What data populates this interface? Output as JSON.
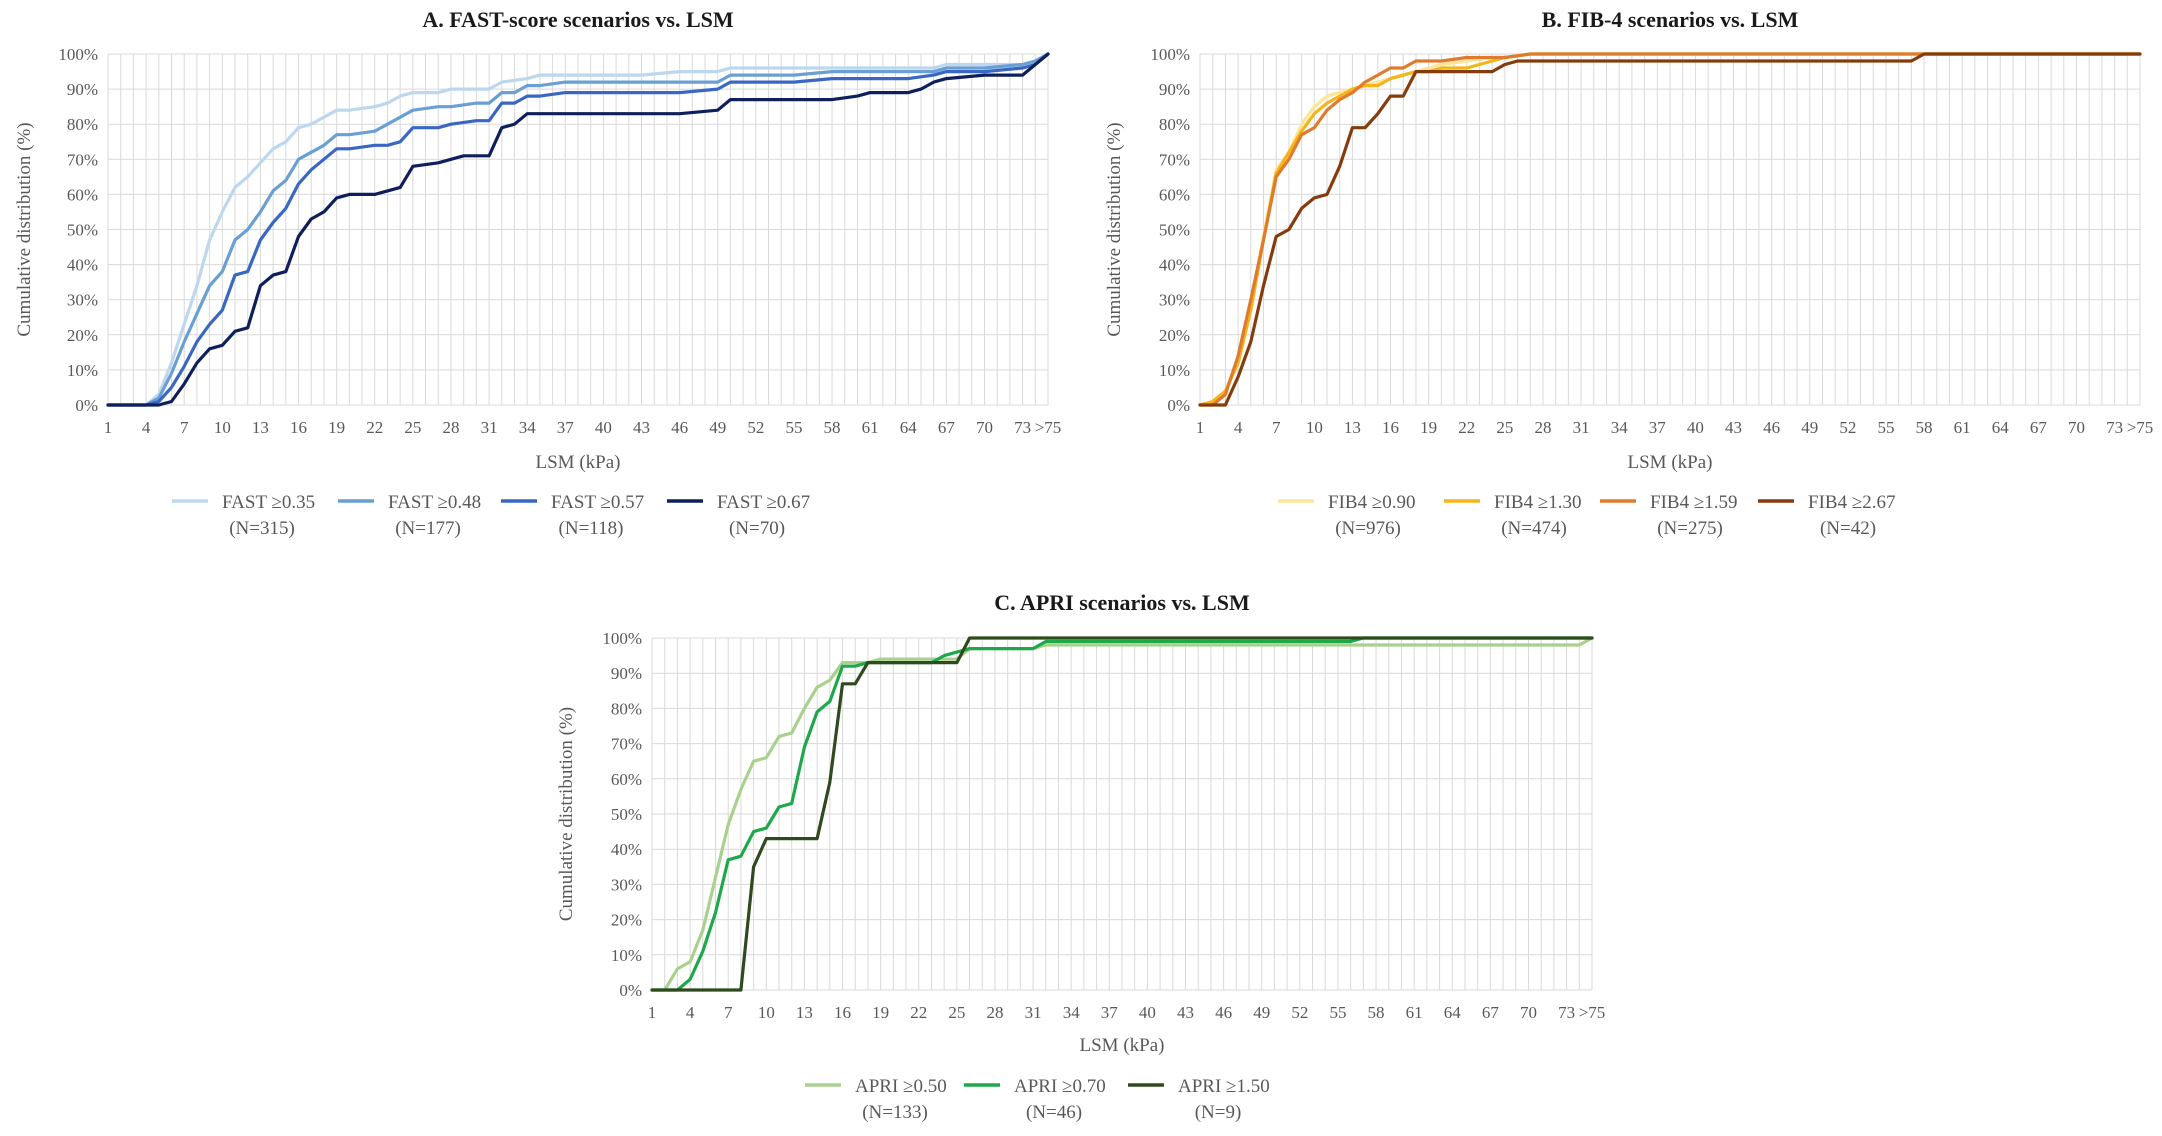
{
  "chart_data": [
    {
      "type": "line",
      "title": "A. FAST-score scenarios vs. LSM",
      "xlabel": "LSM (kPa)",
      "ylabel": "Cumulative distribution (%)",
      "ylim": [
        0,
        100
      ],
      "x_tick_labels": [
        "1",
        "4",
        "7",
        "10",
        "13",
        "16",
        "19",
        "22",
        "25",
        "28",
        "31",
        "34",
        "37",
        "40",
        "43",
        "46",
        "49",
        "52",
        "55",
        "58",
        "61",
        "64",
        "67",
        "70",
        "73",
        ">75"
      ],
      "grid": true,
      "legend_position": "bottom",
      "series": [
        {
          "name": "FAST ≥0.35",
          "n_label": "(N=315)",
          "color": "#bdd7ee",
          "x": [
            1,
            4,
            5,
            6,
            7,
            8,
            9,
            10,
            11,
            12,
            13,
            14,
            15,
            16,
            17,
            18,
            19,
            20,
            22,
            23,
            24,
            25,
            27,
            28,
            30,
            31,
            32,
            34,
            35,
            37,
            40,
            43,
            46,
            49,
            50,
            55,
            58,
            61,
            64,
            66,
            67,
            70,
            73,
            74,
            75
          ],
          "y": [
            0,
            0,
            3,
            12,
            23,
            34,
            47,
            55,
            62,
            65,
            69,
            73,
            75,
            79,
            80,
            82,
            84,
            84,
            85,
            86,
            88,
            89,
            89,
            90,
            90,
            90,
            92,
            93,
            94,
            94,
            94,
            94,
            95,
            95,
            96,
            96,
            96,
            96,
            96,
            96,
            97,
            97,
            97,
            98,
            100
          ]
        },
        {
          "name": "FAST ≥0.48",
          "n_label": "(N=177)",
          "color": "#6a9fd4",
          "x": [
            1,
            4,
            5,
            6,
            7,
            8,
            9,
            10,
            11,
            12,
            13,
            14,
            15,
            16,
            17,
            18,
            19,
            20,
            22,
            23,
            24,
            25,
            27,
            28,
            30,
            31,
            32,
            33,
            34,
            35,
            37,
            40,
            46,
            49,
            50,
            55,
            58,
            61,
            64,
            66,
            67,
            70,
            73,
            74,
            75
          ],
          "y": [
            0,
            0,
            2,
            9,
            18,
            26,
            34,
            38,
            47,
            50,
            55,
            61,
            64,
            70,
            72,
            74,
            77,
            77,
            78,
            80,
            82,
            84,
            85,
            85,
            86,
            86,
            89,
            89,
            91,
            91,
            92,
            92,
            92,
            92,
            94,
            94,
            95,
            95,
            95,
            95,
            96,
            96,
            97,
            98,
            100
          ]
        },
        {
          "name": "FAST ≥0.57",
          "n_label": "(N=118)",
          "color": "#3a67c4",
          "x": [
            1,
            4,
            5,
            6,
            7,
            8,
            9,
            10,
            11,
            12,
            13,
            14,
            15,
            16,
            17,
            18,
            19,
            20,
            22,
            23,
            24,
            25,
            27,
            28,
            30,
            31,
            32,
            33,
            34,
            35,
            37,
            40,
            46,
            49,
            50,
            55,
            58,
            61,
            64,
            66,
            67,
            70,
            73,
            74,
            75
          ],
          "y": [
            0,
            0,
            1,
            5,
            11,
            18,
            23,
            27,
            37,
            38,
            47,
            52,
            56,
            63,
            67,
            70,
            73,
            73,
            74,
            74,
            75,
            79,
            79,
            80,
            81,
            81,
            86,
            86,
            88,
            88,
            89,
            89,
            89,
            90,
            92,
            92,
            93,
            93,
            93,
            94,
            95,
            95,
            96,
            97,
            100
          ]
        },
        {
          "name": "FAST ≥0.67",
          "n_label": "(N=70)",
          "color": "#0f1f5c",
          "x": [
            1,
            5,
            6,
            7,
            8,
            9,
            10,
            11,
            12,
            13,
            14,
            15,
            16,
            17,
            18,
            19,
            20,
            22,
            23,
            24,
            25,
            27,
            28,
            29,
            31,
            32,
            33,
            34,
            46,
            49,
            50,
            55,
            58,
            60,
            61,
            64,
            65,
            66,
            67,
            70,
            73,
            74,
            75
          ],
          "y": [
            0,
            0,
            1,
            6,
            12,
            16,
            17,
            21,
            22,
            34,
            37,
            38,
            48,
            53,
            55,
            59,
            60,
            60,
            61,
            62,
            68,
            69,
            70,
            71,
            71,
            79,
            80,
            83,
            83,
            84,
            87,
            87,
            87,
            88,
            89,
            89,
            90,
            92,
            93,
            94,
            94,
            97,
            100
          ]
        }
      ]
    },
    {
      "type": "line",
      "title": "B. FIB-4 scenarios vs. LSM",
      "xlabel": "LSM (kPa)",
      "ylabel": "Cumulative distribution (%)",
      "ylim": [
        0,
        100
      ],
      "x_tick_labels": [
        "1",
        "4",
        "7",
        "10",
        "13",
        "16",
        "19",
        "22",
        "25",
        "28",
        "31",
        "34",
        "37",
        "40",
        "43",
        "46",
        "49",
        "52",
        "55",
        "58",
        "61",
        "64",
        "67",
        "70",
        "73",
        ">75"
      ],
      "grid": true,
      "legend_position": "bottom",
      "series": [
        {
          "name": "FIB4 ≥0.90",
          "n_label": "(N=976)",
          "color": "#ffe599",
          "x": [
            1,
            2,
            3,
            4,
            5,
            6,
            7,
            8,
            9,
            10,
            11,
            12,
            13,
            14,
            15,
            16,
            17,
            18,
            19,
            20,
            22,
            24,
            25,
            27,
            75
          ],
          "y": [
            0,
            1,
            4,
            13,
            28,
            48,
            67,
            72,
            80,
            85,
            88,
            89,
            90,
            91,
            92,
            93,
            94,
            95,
            96,
            97,
            98,
            99,
            99,
            100,
            100
          ]
        },
        {
          "name": "FIB4 ≥1.30",
          "n_label": "(N=474)",
          "color": "#f4b41a",
          "x": [
            1,
            2,
            3,
            4,
            5,
            6,
            7,
            8,
            9,
            10,
            11,
            12,
            13,
            14,
            15,
            16,
            17,
            18,
            19,
            20,
            22,
            24,
            25,
            27,
            75
          ],
          "y": [
            0,
            1,
            4,
            12,
            27,
            47,
            66,
            72,
            78,
            83,
            86,
            88,
            90,
            91,
            91,
            93,
            94,
            95,
            95,
            96,
            96,
            98,
            99,
            100,
            100
          ]
        },
        {
          "name": "FIB4 ≥1.59",
          "n_label": "(N=275)",
          "color": "#e07b2e",
          "x": [
            1,
            2,
            3,
            4,
            5,
            6,
            7,
            8,
            9,
            10,
            11,
            12,
            13,
            14,
            15,
            16,
            17,
            18,
            19,
            20,
            22,
            24,
            25,
            27,
            75
          ],
          "y": [
            0,
            0,
            3,
            14,
            30,
            47,
            65,
            70,
            77,
            79,
            84,
            87,
            89,
            92,
            94,
            96,
            96,
            98,
            98,
            98,
            99,
            99,
            99,
            100,
            100
          ]
        },
        {
          "name": "FIB4 ≥2.67",
          "n_label": "(N=42)",
          "color": "#843c0c",
          "x": [
            1,
            2,
            3,
            4,
            5,
            6,
            7,
            8,
            9,
            10,
            11,
            12,
            13,
            14,
            15,
            16,
            17,
            18,
            24,
            25,
            26,
            27,
            57,
            58,
            75
          ],
          "y": [
            0,
            0,
            0,
            8,
            18,
            34,
            48,
            50,
            56,
            59,
            60,
            68,
            79,
            79,
            83,
            88,
            88,
            95,
            95,
            97,
            98,
            98,
            98,
            100,
            100
          ]
        }
      ]
    },
    {
      "type": "line",
      "title": "C. APRI scenarios vs. LSM",
      "xlabel": "LSM (kPa)",
      "ylabel": "Cumulative distribution (%)",
      "ylim": [
        0,
        100
      ],
      "x_tick_labels": [
        "1",
        "4",
        "7",
        "10",
        "13",
        "16",
        "19",
        "22",
        "25",
        "28",
        "31",
        "34",
        "37",
        "40",
        "43",
        "46",
        "49",
        "52",
        "55",
        "58",
        "61",
        "64",
        "67",
        "70",
        "73",
        ">75"
      ],
      "grid": true,
      "legend_position": "bottom",
      "series": [
        {
          "name": "APRI ≥0.50",
          "n_label": "(N=133)",
          "color": "#a9d18e",
          "x": [
            1,
            2,
            3,
            4,
            5,
            6,
            7,
            8,
            9,
            10,
            11,
            12,
            13,
            14,
            15,
            16,
            17,
            18,
            19,
            20,
            25,
            26,
            31,
            32,
            34,
            56,
            57,
            69,
            70,
            74,
            75
          ],
          "y": [
            0,
            0,
            6,
            8,
            17,
            32,
            47,
            57,
            65,
            66,
            72,
            73,
            80,
            86,
            88,
            93,
            93,
            93,
            94,
            94,
            94,
            97,
            97,
            98,
            98,
            98,
            98,
            98,
            98,
            98,
            100
          ]
        },
        {
          "name": "APRI ≥0.70",
          "n_label": "(N=46)",
          "color": "#1fa84a",
          "x": [
            1,
            2,
            3,
            4,
            5,
            6,
            7,
            8,
            9,
            10,
            11,
            12,
            13,
            14,
            15,
            16,
            17,
            18,
            23,
            24,
            25,
            26,
            31,
            32,
            56,
            57,
            75
          ],
          "y": [
            0,
            0,
            0,
            3,
            11,
            22,
            37,
            38,
            45,
            46,
            52,
            53,
            69,
            79,
            82,
            92,
            92,
            93,
            93,
            95,
            96,
            97,
            97,
            99,
            99,
            100,
            100
          ]
        },
        {
          "name": "APRI ≥1.50",
          "n_label": "(N=9)",
          "color": "#2f4a1e",
          "x": [
            1,
            8,
            9,
            10,
            14,
            15,
            16,
            17,
            18,
            25,
            26,
            75
          ],
          "y": [
            0,
            0,
            35,
            43,
            43,
            59,
            87,
            87,
            93,
            93,
            100,
            100
          ]
        }
      ]
    }
  ]
}
